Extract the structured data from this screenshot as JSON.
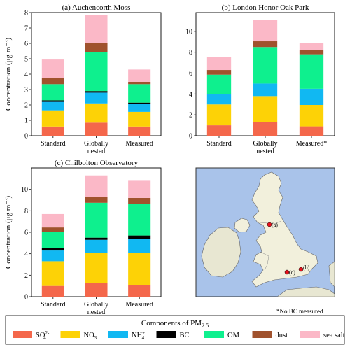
{
  "colors": {
    "so4": "#f4674b",
    "no3": "#fdd206",
    "nh4": "#11b8f2",
    "bc": "#000000",
    "om": "#0ef08e",
    "dust": "#a0522d",
    "seasalt": "#fbb8c7"
  },
  "legend": {
    "title": "Components of PM",
    "title_sub": "2.5",
    "items": [
      {
        "key": "so4",
        "label": "SO",
        "sub": "4",
        "sup": "2-"
      },
      {
        "key": "no3",
        "label": "NO",
        "sub": "3",
        "sup": ""
      },
      {
        "key": "nh4",
        "label": "NH",
        "sub": "4",
        "sup": "+"
      },
      {
        "key": "bc",
        "label": "BC",
        "sub": "",
        "sup": ""
      },
      {
        "key": "om",
        "label": "OM",
        "sub": "",
        "sup": ""
      },
      {
        "key": "dust",
        "label": "dust",
        "sub": "",
        "sup": ""
      },
      {
        "key": "seasalt",
        "label": "sea salt",
        "sub": "",
        "sup": ""
      }
    ]
  },
  "footnote": "*No BC measured",
  "map": {
    "site_labels": [
      "(a)",
      "(c)",
      "(b)"
    ]
  },
  "chart_data": [
    {
      "type": "bar",
      "stacked": true,
      "title": "(a) Auchencorth Moss",
      "ylabel": "Concentration (μg m⁻³)",
      "ylim": [
        0,
        8
      ],
      "yticks": [
        0,
        1,
        2,
        3,
        4,
        5,
        6,
        7,
        8
      ],
      "categories": [
        "Standard",
        "Globally nested",
        "Measured"
      ],
      "series": [
        {
          "key": "so4",
          "values": [
            0.6,
            0.85,
            0.6
          ]
        },
        {
          "key": "no3",
          "values": [
            1.05,
            1.25,
            0.95
          ]
        },
        {
          "key": "nh4",
          "values": [
            0.55,
            0.7,
            0.5
          ]
        },
        {
          "key": "bc",
          "values": [
            0.1,
            0.1,
            0.1
          ]
        },
        {
          "key": "om",
          "values": [
            1.05,
            2.55,
            1.2
          ]
        },
        {
          "key": "dust",
          "values": [
            0.4,
            0.55,
            0.15
          ]
        },
        {
          "key": "seasalt",
          "values": [
            1.2,
            1.85,
            0.8
          ]
        }
      ]
    },
    {
      "type": "bar",
      "stacked": true,
      "title": "(b) London Honor Oak Park",
      "ylabel": "",
      "ylim": [
        0,
        11.8
      ],
      "yticks": [
        0,
        2,
        4,
        6,
        8,
        10
      ],
      "categories": [
        "Standard",
        "Globally nested",
        "Measured*"
      ],
      "series": [
        {
          "key": "so4",
          "values": [
            1.0,
            1.3,
            0.9
          ]
        },
        {
          "key": "no3",
          "values": [
            2.0,
            2.5,
            2.05
          ]
        },
        {
          "key": "nh4",
          "values": [
            1.0,
            1.2,
            1.55
          ]
        },
        {
          "key": "bc",
          "values": [
            0,
            0,
            0
          ]
        },
        {
          "key": "om",
          "values": [
            1.85,
            3.5,
            3.3
          ]
        },
        {
          "key": "dust",
          "values": [
            0.45,
            0.55,
            0.4
          ]
        },
        {
          "key": "seasalt",
          "values": [
            1.25,
            2.05,
            0.7
          ]
        }
      ]
    },
    {
      "type": "bar",
      "stacked": true,
      "title": "(c) Chilbolton Observatory",
      "ylabel": "Concentration (μg m⁻³)",
      "ylim": [
        0,
        12
      ],
      "yticks": [
        0,
        2,
        4,
        6,
        8,
        10
      ],
      "categories": [
        "Standard",
        "Globally nested",
        "Measured"
      ],
      "series": [
        {
          "key": "so4",
          "values": [
            1.0,
            1.3,
            1.05
          ]
        },
        {
          "key": "no3",
          "values": [
            2.3,
            2.75,
            3.0
          ]
        },
        {
          "key": "nh4",
          "values": [
            1.0,
            1.25,
            1.3
          ]
        },
        {
          "key": "bc",
          "values": [
            0.2,
            0.2,
            0.35
          ]
        },
        {
          "key": "om",
          "values": [
            1.5,
            3.25,
            2.95
          ]
        },
        {
          "key": "dust",
          "values": [
            0.45,
            0.55,
            0.55
          ]
        },
        {
          "key": "seasalt",
          "values": [
            1.25,
            2.0,
            1.6
          ]
        }
      ]
    }
  ]
}
